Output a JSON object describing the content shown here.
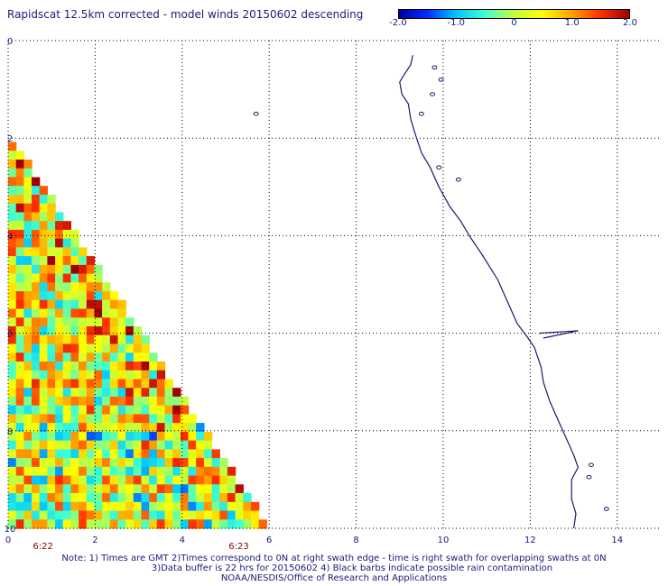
{
  "header": {
    "title": "Rapidscat 12.5km corrected - model winds 20150602 descending"
  },
  "colorbar": {
    "stops": [
      "#0000a0",
      "#0030ff",
      "#00c8ff",
      "#40ffd0",
      "#c0ff40",
      "#ffff00",
      "#ffa000",
      "#ff3000",
      "#a00000"
    ],
    "ticks": [
      {
        "value": -2.0,
        "label": "-2.0"
      },
      {
        "value": -1.0,
        "label": "-1.0"
      },
      {
        "value": 0,
        "label": "0"
      },
      {
        "value": 1.0,
        "label": "1.0"
      },
      {
        "value": 2.0,
        "label": "2.0"
      }
    ],
    "range": [
      -2.0,
      2.0
    ]
  },
  "map": {
    "x_ticks": [
      "0",
      "2",
      "4",
      "6",
      "8",
      "10",
      "12",
      "14"
    ],
    "y_ticks": [
      "0",
      "2",
      "4",
      "6",
      "8",
      "10"
    ],
    "x_range": [
      0,
      15
    ],
    "y_range": [
      0,
      10
    ],
    "time_labels": [
      {
        "x": 0.8,
        "text": "6:22"
      },
      {
        "x": 5.3,
        "text": "6:23"
      }
    ],
    "swath": {
      "start_y": 1.9,
      "edge_x_at_start": 0.0,
      "edge_x_at_bottom": 6.0,
      "cell": 0.18,
      "seed": 20150602
    },
    "coastline_color": "#1a1a6a",
    "grid_color": "#000000"
  },
  "notes": {
    "line1": "Note: 1) Times are GMT 2)Times correspond to 0N at right swath edge - time is right swath for overlapping swaths at 0N",
    "line2": "3)Data buffer is 22 hrs for 20150602 4) Black barbs indicate possible rain contamination",
    "line3": "NOAA/NESDIS/Office of Research and Applications"
  }
}
